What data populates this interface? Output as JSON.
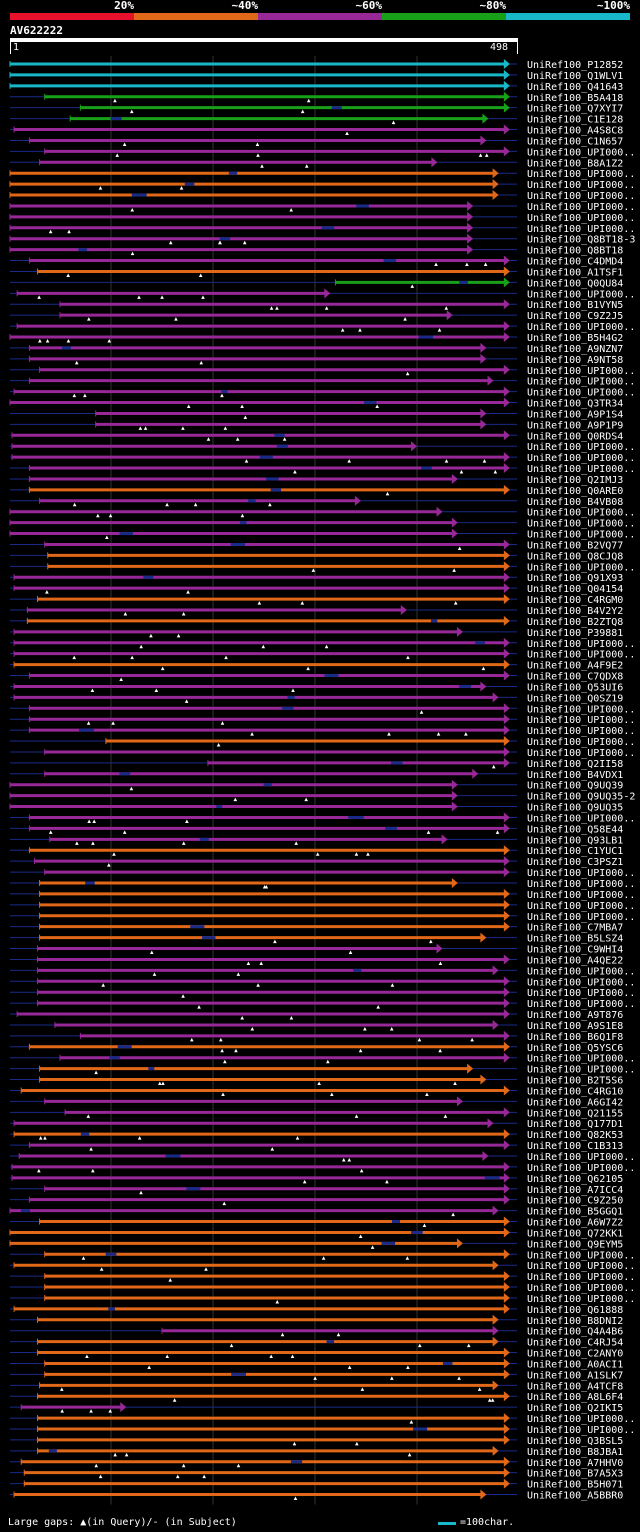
{
  "legend": {
    "segments": [
      {
        "label": "20%",
        "color": "#e8102a"
      },
      {
        "label": "~40%",
        "color": "#e06818"
      },
      {
        "label": "~60%",
        "color": "#982898"
      },
      {
        "label": "~80%",
        "color": "#18a018"
      },
      {
        "label": "~100%",
        "color": "#18b8c8"
      }
    ]
  },
  "query": {
    "id": "AV622222",
    "start": "1",
    "end": "498"
  },
  "colors": {
    "cyan": "#18b8c8",
    "green": "#18a018",
    "purple": "#982898",
    "orange": "#e06818",
    "gap": "#1a2a88",
    "grid": "#333333"
  },
  "hits": [
    {
      "label": "UniRef100_P12852",
      "s": 1,
      "e": 491,
      "c": "cyan"
    },
    {
      "label": "UniRef100_Q1WLV1",
      "s": 1,
      "e": 491,
      "c": "cyan"
    },
    {
      "label": "UniRef100_Q41643",
      "s": 1,
      "e": 491,
      "c": "cyan"
    },
    {
      "label": "UniRef100_B5A418",
      "s": 35,
      "e": 491,
      "c": "green"
    },
    {
      "label": "UniRef100_Q7XYI7",
      "s": 70,
      "e": 491,
      "c": "green"
    },
    {
      "label": "UniRef100_C1E128",
      "s": 60,
      "e": 470,
      "c": "green"
    },
    {
      "label": "UniRef100_A4S8C8",
      "s": 5,
      "e": 491,
      "c": "purple"
    },
    {
      "label": "UniRef100_C1N657",
      "s": 20,
      "e": 468,
      "c": "purple"
    },
    {
      "label": "UniRef100_UPI000..",
      "s": 35,
      "e": 491,
      "c": "purple"
    },
    {
      "label": "UniRef100_B8A1Z2",
      "s": 30,
      "e": 420,
      "c": "purple"
    },
    {
      "label": "UniRef100_UPI000..",
      "s": 1,
      "e": 480,
      "c": "orange"
    },
    {
      "label": "UniRef100_UPI000..",
      "s": 1,
      "e": 480,
      "c": "orange"
    },
    {
      "label": "UniRef100_UPI000..",
      "s": 1,
      "e": 480,
      "c": "orange"
    },
    {
      "label": "UniRef100_UPI000..",
      "s": 1,
      "e": 455,
      "c": "purple"
    },
    {
      "label": "UniRef100_UPI000..",
      "s": 1,
      "e": 455,
      "c": "purple"
    },
    {
      "label": "UniRef100_UPI000..",
      "s": 1,
      "e": 455,
      "c": "purple"
    },
    {
      "label": "UniRef100_Q8BT18-3",
      "s": 1,
      "e": 455,
      "c": "purple"
    },
    {
      "label": "UniRef100_Q8BT18",
      "s": 1,
      "e": 455,
      "c": "purple"
    },
    {
      "label": "UniRef100_C4DMD4",
      "s": 20,
      "e": 491,
      "c": "purple"
    },
    {
      "label": "UniRef100_A1TSF1",
      "s": 28,
      "e": 491,
      "c": "orange"
    },
    {
      "label": "UniRef100_Q0QU84",
      "s": 320,
      "e": 491,
      "c": "green"
    },
    {
      "label": "UniRef100_UPI000..",
      "s": 8,
      "e": 315,
      "c": "purple"
    },
    {
      "label": "UniRef100_B1VYN5",
      "s": 50,
      "e": 491,
      "c": "purple"
    },
    {
      "label": "UniRef100_C9Z2J5",
      "s": 50,
      "e": 435,
      "c": "purple"
    },
    {
      "label": "UniRef100_UPI000..",
      "s": 8,
      "e": 491,
      "c": "purple"
    },
    {
      "label": "UniRef100_B5H4G2",
      "s": 1,
      "e": 491,
      "c": "purple"
    },
    {
      "label": "UniRef100_A9NZN7",
      "s": 20,
      "e": 468,
      "c": "purple"
    },
    {
      "label": "UniRef100_A9NT58",
      "s": 20,
      "e": 468,
      "c": "purple"
    },
    {
      "label": "UniRef100_UPI000..",
      "s": 30,
      "e": 491,
      "c": "purple"
    },
    {
      "label": "UniRef100_UPI000..",
      "s": 20,
      "e": 475,
      "c": "purple"
    },
    {
      "label": "UniRef100_UPI000..",
      "s": 5,
      "e": 491,
      "c": "purple"
    },
    {
      "label": "UniRef100_Q3TR34",
      "s": 1,
      "e": 491,
      "c": "purple"
    },
    {
      "label": "UniRef100_A9P1S4",
      "s": 85,
      "e": 468,
      "c": "purple"
    },
    {
      "label": "UniRef100_A9P1P9",
      "s": 85,
      "e": 468,
      "c": "purple"
    },
    {
      "label": "UniRef100_Q0RDS4",
      "s": 3,
      "e": 491,
      "c": "purple"
    },
    {
      "label": "UniRef100_UPI000..",
      "s": 3,
      "e": 400,
      "c": "purple"
    },
    {
      "label": "UniRef100_UPI000..",
      "s": 3,
      "e": 491,
      "c": "purple"
    },
    {
      "label": "UniRef100_UPI000..",
      "s": 20,
      "e": 491,
      "c": "purple"
    },
    {
      "label": "UniRef100_Q2IMJ3",
      "s": 20,
      "e": 440,
      "c": "purple"
    },
    {
      "label": "UniRef100_Q0ARE0",
      "s": 20,
      "e": 491,
      "c": "orange"
    },
    {
      "label": "UniRef100_B4VB08",
      "s": 30,
      "e": 345,
      "c": "purple"
    },
    {
      "label": "UniRef100_UPI000..",
      "s": 1,
      "e": 425,
      "c": "purple"
    },
    {
      "label": "UniRef100_UPI000..",
      "s": 1,
      "e": 440,
      "c": "purple"
    },
    {
      "label": "UniRef100_UPI000..",
      "s": 1,
      "e": 440,
      "c": "purple"
    },
    {
      "label": "UniRef100_B2VQ77",
      "s": 35,
      "e": 491,
      "c": "purple"
    },
    {
      "label": "UniRef100_Q8CJQ8",
      "s": 38,
      "e": 491,
      "c": "orange"
    },
    {
      "label": "UniRef100_UPI000..",
      "s": 38,
      "e": 491,
      "c": "orange"
    },
    {
      "label": "UniRef100_Q91X93",
      "s": 5,
      "e": 491,
      "c": "purple"
    },
    {
      "label": "UniRef100_Q04154",
      "s": 5,
      "e": 491,
      "c": "purple"
    },
    {
      "label": "UniRef100_C4RGM0",
      "s": 28,
      "e": 491,
      "c": "orange"
    },
    {
      "label": "UniRef100_B4V2Y2",
      "s": 18,
      "e": 390,
      "c": "purple"
    },
    {
      "label": "UniRef100_B2ZTQ8",
      "s": 18,
      "e": 491,
      "c": "orange"
    },
    {
      "label": "UniRef100_P39881",
      "s": 5,
      "e": 445,
      "c": "purple"
    },
    {
      "label": "UniRef100_UPI000..",
      "s": 5,
      "e": 491,
      "c": "purple"
    },
    {
      "label": "UniRef100_UPI000..",
      "s": 5,
      "e": 491,
      "c": "purple"
    },
    {
      "label": "UniRef100_A4F9E2",
      "s": 5,
      "e": 491,
      "c": "orange"
    },
    {
      "label": "UniRef100_C7QDX8",
      "s": 20,
      "e": 491,
      "c": "purple"
    },
    {
      "label": "UniRef100_Q53UI6",
      "s": 5,
      "e": 468,
      "c": "purple"
    },
    {
      "label": "UniRef100_Q0SZ19",
      "s": 5,
      "e": 480,
      "c": "purple"
    },
    {
      "label": "UniRef100_UPI000..",
      "s": 20,
      "e": 491,
      "c": "purple"
    },
    {
      "label": "UniRef100_UPI000..",
      "s": 20,
      "e": 491,
      "c": "purple"
    },
    {
      "label": "UniRef100_UPI000..",
      "s": 20,
      "e": 491,
      "c": "purple"
    },
    {
      "label": "UniRef100_UPI000..",
      "s": 95,
      "e": 491,
      "c": "orange"
    },
    {
      "label": "UniRef100_UPI000..",
      "s": 35,
      "e": 491,
      "c": "purple"
    },
    {
      "label": "UniRef100_Q2II58",
      "s": 195,
      "e": 491,
      "c": "purple"
    },
    {
      "label": "UniRef100_B4VDX1",
      "s": 35,
      "e": 460,
      "c": "purple"
    },
    {
      "label": "UniRef100_Q9UQ39",
      "s": 1,
      "e": 440,
      "c": "purple"
    },
    {
      "label": "UniRef100_Q9UQ35-2",
      "s": 1,
      "e": 440,
      "c": "purple"
    },
    {
      "label": "UniRef100_Q9UQ35",
      "s": 1,
      "e": 440,
      "c": "purple"
    },
    {
      "label": "UniRef100_UPI000..",
      "s": 20,
      "e": 491,
      "c": "purple"
    },
    {
      "label": "UniRef100_Q58E44",
      "s": 20,
      "e": 491,
      "c": "purple"
    },
    {
      "label": "UniRef100_Q93LB1",
      "s": 40,
      "e": 430,
      "c": "purple"
    },
    {
      "label": "UniRef100_C1YUC1",
      "s": 20,
      "e": 491,
      "c": "orange"
    },
    {
      "label": "UniRef100_C3PSZ1",
      "s": 25,
      "e": 491,
      "c": "purple"
    },
    {
      "label": "UniRef100_UPI000..",
      "s": 35,
      "e": 491,
      "c": "purple"
    },
    {
      "label": "UniRef100_UPI000..",
      "s": 30,
      "e": 440,
      "c": "orange"
    },
    {
      "label": "UniRef100_UPI000..",
      "s": 30,
      "e": 491,
      "c": "orange"
    },
    {
      "label": "UniRef100_UPI000..",
      "s": 30,
      "e": 491,
      "c": "orange"
    },
    {
      "label": "UniRef100_UPI000..",
      "s": 30,
      "e": 491,
      "c": "orange"
    },
    {
      "label": "UniRef100_C7MBA7",
      "s": 30,
      "e": 491,
      "c": "orange"
    },
    {
      "label": "UniRef100_B5LSZ4",
      "s": 30,
      "e": 468,
      "c": "orange"
    },
    {
      "label": "UniRef100_C9WHI4",
      "s": 28,
      "e": 425,
      "c": "purple"
    },
    {
      "label": "UniRef100_A4QE22",
      "s": 28,
      "e": 491,
      "c": "purple"
    },
    {
      "label": "UniRef100_UPI000..",
      "s": 28,
      "e": 480,
      "c": "purple"
    },
    {
      "label": "UniRef100_UPI000..",
      "s": 28,
      "e": 491,
      "c": "purple"
    },
    {
      "label": "UniRef100_UPI000..",
      "s": 28,
      "e": 491,
      "c": "purple"
    },
    {
      "label": "UniRef100_UPI000..",
      "s": 28,
      "e": 491,
      "c": "purple"
    },
    {
      "label": "UniRef100_A9T876",
      "s": 8,
      "e": 491,
      "c": "purple"
    },
    {
      "label": "UniRef100_A9S1E8",
      "s": 45,
      "e": 480,
      "c": "purple"
    },
    {
      "label": "UniRef100_B6Q1F8",
      "s": 70,
      "e": 491,
      "c": "purple"
    },
    {
      "label": "UniRef100_Q5YSC6",
      "s": 20,
      "e": 491,
      "c": "orange"
    },
    {
      "label": "UniRef100_UPI000..",
      "s": 50,
      "e": 491,
      "c": "purple"
    },
    {
      "label": "UniRef100_UPI000..",
      "s": 30,
      "e": 455,
      "c": "orange"
    },
    {
      "label": "UniRef100_B2T5S6",
      "s": 30,
      "e": 468,
      "c": "orange"
    },
    {
      "label": "UniRef100_C4RG10",
      "s": 12,
      "e": 491,
      "c": "orange"
    },
    {
      "label": "UniRef100_A6GI42",
      "s": 35,
      "e": 445,
      "c": "purple"
    },
    {
      "label": "UniRef100_Q21155",
      "s": 55,
      "e": 491,
      "c": "purple"
    },
    {
      "label": "UniRef100_Q177D1",
      "s": 5,
      "e": 475,
      "c": "purple"
    },
    {
      "label": "UniRef100_Q82K53",
      "s": 5,
      "e": 491,
      "c": "orange"
    },
    {
      "label": "UniRef100_C1B313",
      "s": 20,
      "e": 491,
      "c": "purple"
    },
    {
      "label": "UniRef100_UPI000..",
      "s": 10,
      "e": 470,
      "c": "purple"
    },
    {
      "label": "UniRef100_UPI000..",
      "s": 3,
      "e": 491,
      "c": "purple"
    },
    {
      "label": "UniRef100_Q62105",
      "s": 3,
      "e": 491,
      "c": "purple"
    },
    {
      "label": "UniRef100_A7ICC4",
      "s": 35,
      "e": 491,
      "c": "purple"
    },
    {
      "label": "UniRef100_C9Z250",
      "s": 20,
      "e": 491,
      "c": "purple"
    },
    {
      "label": "UniRef100_B5GGQ1",
      "s": 1,
      "e": 480,
      "c": "purple"
    },
    {
      "label": "UniRef100_A6W7Z2",
      "s": 30,
      "e": 491,
      "c": "orange"
    },
    {
      "label": "UniRef100_Q72KK1",
      "s": 1,
      "e": 491,
      "c": "orange"
    },
    {
      "label": "UniRef100_Q9EYM5",
      "s": 1,
      "e": 445,
      "c": "orange"
    },
    {
      "label": "UniRef100_UPI000..",
      "s": 35,
      "e": 491,
      "c": "orange"
    },
    {
      "label": "UniRef100_UPI000..",
      "s": 5,
      "e": 480,
      "c": "orange"
    },
    {
      "label": "UniRef100_UPI000..",
      "s": 35,
      "e": 491,
      "c": "orange"
    },
    {
      "label": "UniRef100_UPI000..",
      "s": 35,
      "e": 491,
      "c": "orange"
    },
    {
      "label": "UniRef100_UPI000..",
      "s": 35,
      "e": 491,
      "c": "orange"
    },
    {
      "label": "UniRef100_Q61888",
      "s": 5,
      "e": 491,
      "c": "orange"
    },
    {
      "label": "UniRef100_B8DNI2",
      "s": 28,
      "e": 480,
      "c": "orange"
    },
    {
      "label": "UniRef100_Q4A4B6",
      "s": 150,
      "e": 480,
      "c": "purple"
    },
    {
      "label": "UniRef100_C4RJ54",
      "s": 28,
      "e": 480,
      "c": "orange"
    },
    {
      "label": "UniRef100_C2ANY0",
      "s": 28,
      "e": 491,
      "c": "orange"
    },
    {
      "label": "UniRef100_A0ACI1",
      "s": 35,
      "e": 491,
      "c": "orange"
    },
    {
      "label": "UniRef100_A1SLK7",
      "s": 35,
      "e": 491,
      "c": "orange"
    },
    {
      "label": "UniRef100_A4TCF8",
      "s": 30,
      "e": 480,
      "c": "orange"
    },
    {
      "label": "UniRef100_A8L6F4",
      "s": 28,
      "e": 491,
      "c": "orange"
    },
    {
      "label": "UniRef100_Q2IKI5",
      "s": 12,
      "e": 115,
      "c": "purple"
    },
    {
      "label": "UniRef100_UPI000..",
      "s": 28,
      "e": 491,
      "c": "orange"
    },
    {
      "label": "UniRef100_UPI000..",
      "s": 28,
      "e": 491,
      "c": "orange"
    },
    {
      "label": "UniRef100_Q3BSL5",
      "s": 28,
      "e": 491,
      "c": "orange"
    },
    {
      "label": "UniRef100_B8JBA1",
      "s": 28,
      "e": 480,
      "c": "orange"
    },
    {
      "label": "UniRef100_A7HHV0",
      "s": 12,
      "e": 491,
      "c": "orange"
    },
    {
      "label": "UniRef100_B7A5X3",
      "s": 15,
      "e": 491,
      "c": "orange"
    },
    {
      "label": "UniRef100_B5H071",
      "s": 15,
      "e": 491,
      "c": "orange"
    },
    {
      "label": "UniRef100_A5BBR0",
      "s": 5,
      "e": 468,
      "c": "orange"
    }
  ],
  "footer": {
    "gaps_text": "Large gaps: ▲(in Query)/- (in Subject)",
    "scale_text": "=100char."
  }
}
